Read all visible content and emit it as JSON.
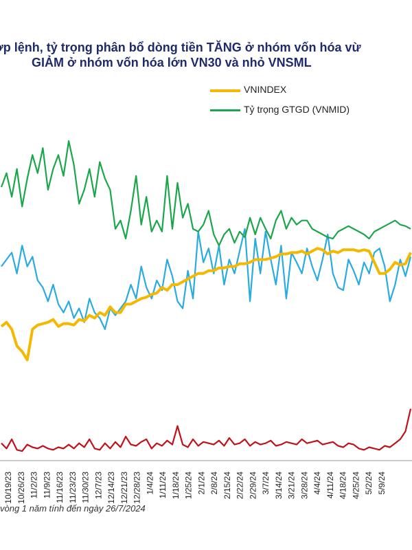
{
  "title_line1": "ớp lệnh, tỷ trọng phân bổ dòng tiền TĂNG ở nhóm vốn hóa vừ",
  "title_line2": "GIẢM ở nhóm vốn hóa lớn VN30 và nhỏ VNSML",
  "footnote": "vòng 1 năm tính đến ngày 26/7/2024",
  "colors": {
    "vnindex": "#f5b800",
    "vnmid": "#1aa64a",
    "vn30": "#29abe2",
    "vnsml": "#c0121a"
  },
  "chart_data": {
    "type": "line",
    "title": "",
    "xlabel": "",
    "ylabel": "",
    "legend": "top-right",
    "grid": false,
    "x_ticks": [
      "10/19/23",
      "10/26/23",
      "11/2/23",
      "11/9/23",
      "11/16/23",
      "11/23/23",
      "11/30/23",
      "12/7/23",
      "12/14/23",
      "12/21/23",
      "12/28/23",
      "1/4/24",
      "1/11/24",
      "1/18/24",
      "1/25/24",
      "2/1/24",
      "2/8/24",
      "2/15/24",
      "2/22/24",
      "2/29/24",
      "3/7/24",
      "3/14/24",
      "3/21/24",
      "3/28/24",
      "4/4/24",
      "4/11/24",
      "4/18/24",
      "4/25/24",
      "5/2/24",
      "5/9/24"
    ],
    "series": [
      {
        "name": "VNINDEX",
        "color": "#f5b800",
        "values": [
          42,
          45,
          40,
          28,
          24,
          18,
          40,
          43,
          44,
          45,
          47,
          42,
          44,
          44,
          43,
          47,
          46,
          50,
          48,
          52,
          50,
          56,
          52,
          52,
          58,
          58,
          60,
          62,
          63,
          65,
          66,
          70,
          68,
          72,
          72,
          74,
          76,
          78,
          80,
          80,
          82,
          82,
          84,
          84,
          85,
          85,
          87,
          87,
          88,
          90,
          90,
          90,
          91,
          92,
          94,
          94,
          95,
          95,
          96,
          94,
          96,
          98,
          97,
          94,
          96,
          95,
          97,
          97,
          97,
          96,
          97,
          96,
          88,
          80,
          80,
          83,
          88,
          86,
          87,
          95
        ]
      },
      {
        "name": "Tỷ trọng GTGD (VNMID)",
        "color": "#1aa64a",
        "values": [
          142,
          152,
          135,
          155,
          128,
          148,
          165,
          152,
          170,
          140,
          155,
          165,
          150,
          175,
          158,
          130,
          140,
          155,
          135,
          160,
          148,
          140,
          112,
          118,
          105,
          125,
          150,
          115,
          135,
          110,
          118,
          110,
          150,
          112,
          145,
          120,
          130,
          112,
          110,
          115,
          125,
          108,
          100,
          108,
          112,
          102,
          110,
          106,
          120,
          108,
          120,
          112,
          105,
          118,
          125,
          112,
          120,
          115,
          118,
          118,
          112,
          110,
          108,
          106,
          105,
          110,
          112,
          114,
          112,
          110,
          108,
          105,
          110,
          112,
          114,
          116,
          118,
          115,
          114,
          112
        ]
      },
      {
        "name": "",
        "color": "#29abe2",
        "values": [
          85,
          90,
          95,
          80,
          100,
          85,
          92,
          75,
          70,
          60,
          72,
          58,
          52,
          60,
          48,
          55,
          45,
          62,
          52,
          48,
          40,
          55,
          50,
          55,
          60,
          72,
          62,
          85,
          70,
          62,
          75,
          68,
          90,
          78,
          60,
          55,
          82,
          62,
          110,
          88,
          98,
          80,
          100,
          72,
          90,
          80,
          96,
          112,
          60,
          105,
          80,
          110,
          90,
          72,
          100,
          62,
          95,
          88,
          80,
          98,
          85,
          75,
          90,
          108,
          80,
          70,
          68,
          90,
          82,
          72,
          88,
          80,
          95,
          98,
          85,
          60,
          72,
          90,
          78,
          92
        ]
      },
      {
        "name": "",
        "color": "#c0121a",
        "values": [
          9,
          5,
          12,
          4,
          3,
          8,
          6,
          5,
          7,
          5,
          4,
          6,
          5,
          8,
          5,
          9,
          6,
          12,
          5,
          4,
          9,
          5,
          10,
          6,
          14,
          8,
          7,
          10,
          12,
          5,
          9,
          7,
          11,
          8,
          22,
          8,
          6,
          12,
          7,
          10,
          9,
          8,
          11,
          7,
          13,
          8,
          9,
          12,
          7,
          10,
          8,
          9,
          11,
          7,
          8,
          10,
          9,
          8,
          12,
          9,
          10,
          11,
          8,
          9,
          10,
          7,
          6,
          9,
          8,
          5,
          4,
          6,
          5,
          4,
          7,
          6,
          9,
          12,
          18,
          35
        ]
      }
    ]
  }
}
